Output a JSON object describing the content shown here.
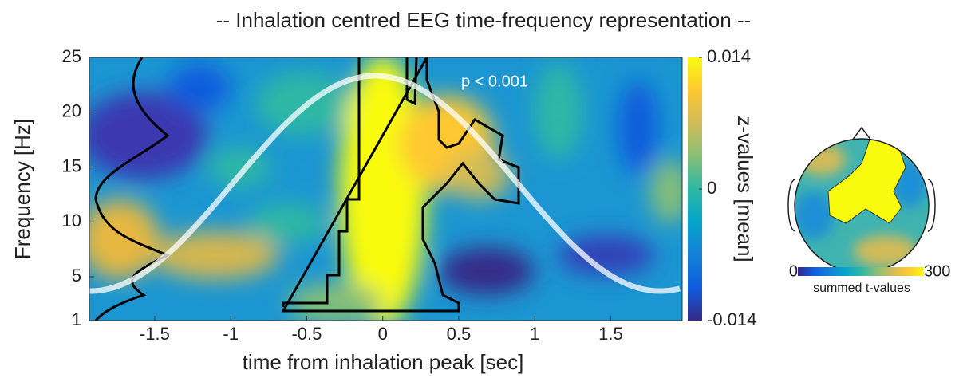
{
  "chart_data": {
    "type": "heatmap",
    "title": "-- Inhalation centred EEG time-frequency representation --",
    "xlabel": "time from inhalation peak [sec]",
    "ylabel": "Frequency [Hz]",
    "xlim": [
      -1.93,
      1.97
    ],
    "xticks": [
      -1.5,
      -1,
      -0.5,
      0,
      0.5,
      1,
      1.5
    ],
    "ylim": [
      1,
      25
    ],
    "yticks": [
      1,
      5,
      10,
      15,
      20,
      25
    ],
    "annotation": "p < 0.001",
    "colormap": [
      "#352a87",
      "#0f5cdd",
      "#1481d6",
      "#06a4ca",
      "#2eb7a4",
      "#87bf77",
      "#d1bb59",
      "#fec832",
      "#f9fb0e"
    ],
    "colorbar": {
      "label": "z-values [mean]",
      "lim": [
        -0.014,
        0.014
      ],
      "ticks": [
        -0.014,
        0,
        0.014
      ]
    },
    "topomap": {
      "label": "summed t-values",
      "lim": [
        0,
        300
      ],
      "ticks": [
        0,
        300
      ]
    }
  }
}
